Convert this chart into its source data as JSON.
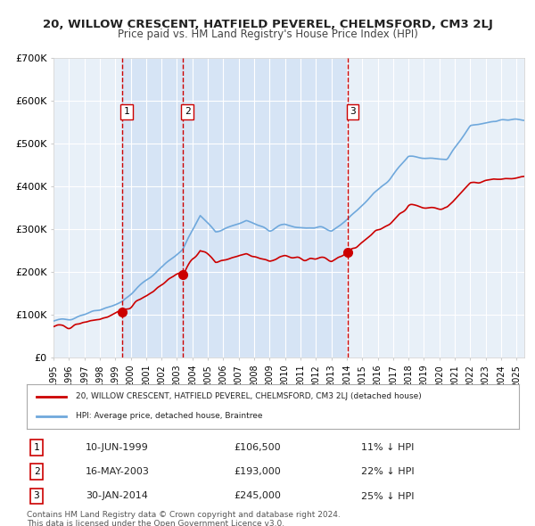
{
  "title": "20, WILLOW CRESCENT, HATFIELD PEVEREL, CHELMSFORD, CM3 2LJ",
  "subtitle": "Price paid vs. HM Land Registry's House Price Index (HPI)",
  "xlabel": "",
  "ylabel": "",
  "ylim": [
    0,
    700000
  ],
  "yticks": [
    0,
    100000,
    200000,
    300000,
    400000,
    500000,
    600000,
    700000
  ],
  "ytick_labels": [
    "£0",
    "£100K",
    "£200K",
    "£300K",
    "£400K",
    "£500K",
    "£600K",
    "£700K"
  ],
  "background_color": "#ffffff",
  "plot_bg_color": "#e8f0f8",
  "grid_color": "#ffffff",
  "hpi_color": "#6fa8dc",
  "price_color": "#cc0000",
  "sale_dot_color": "#cc0000",
  "vline_color": "#cc0000",
  "shade_color": "#d6e4f5",
  "purchases": [
    {
      "date_str": "10-JUN-1999",
      "date_num": 1999.44,
      "price": 106500,
      "label": "1",
      "pct": "11%"
    },
    {
      "date_str": "16-MAY-2003",
      "date_num": 2003.37,
      "price": 193000,
      "label": "2",
      "pct": "22%"
    },
    {
      "date_str": "30-JAN-2014",
      "date_num": 2014.08,
      "price": 245000,
      "label": "3",
      "pct": "25%"
    }
  ],
  "legend_label_price": "20, WILLOW CRESCENT, HATFIELD PEVEREL, CHELMSFORD, CM3 2LJ (detached house)",
  "legend_label_hpi": "HPI: Average price, detached house, Braintree",
  "footer1": "Contains HM Land Registry data © Crown copyright and database right 2024.",
  "footer2": "This data is licensed under the Open Government Licence v3.0.",
  "xstart": 1995.0,
  "xend": 2025.5
}
